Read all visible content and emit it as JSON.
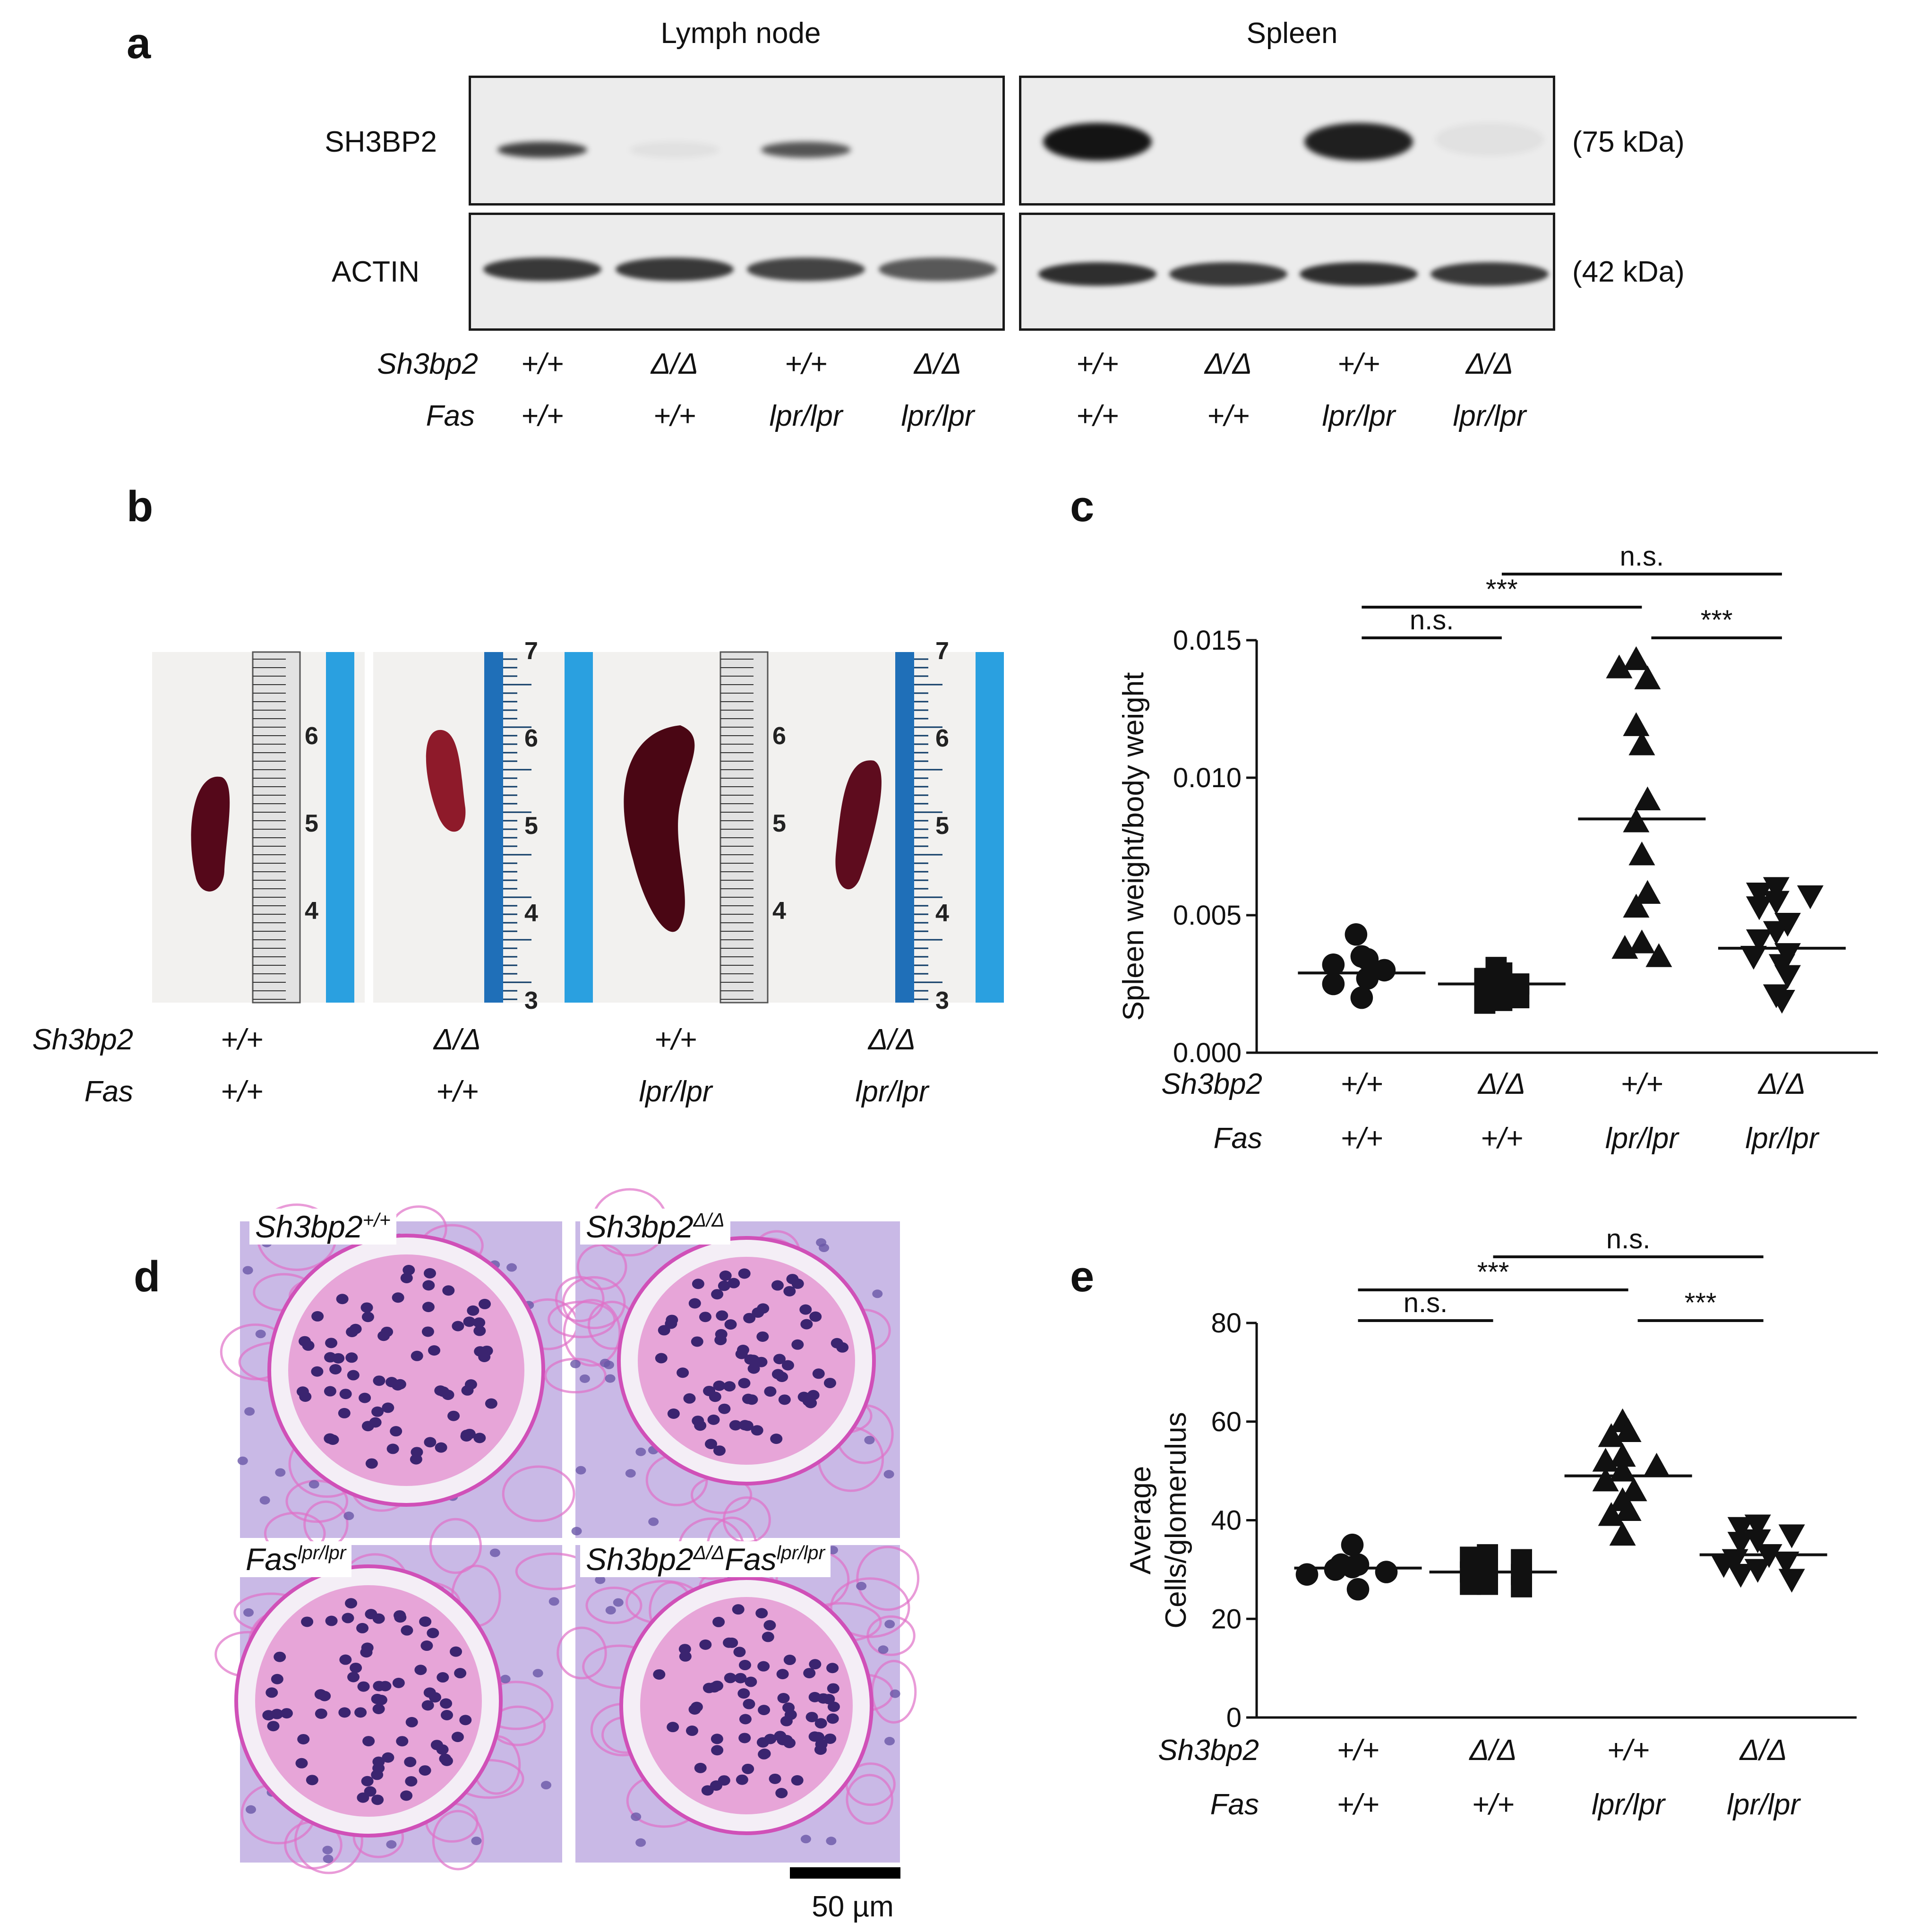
{
  "panels": {
    "a": "a",
    "b": "b",
    "c": "c",
    "d": "d",
    "e": "e"
  },
  "blot": {
    "tissue_left": "Lymph node",
    "tissue_right": "Spleen",
    "row1_label": "SH3BP2",
    "row2_label": "ACTIN",
    "row1_size": "(75 kDa)",
    "row2_size": "(42 kDa)",
    "sh3bp2_label": "Sh3bp2",
    "fas_label": "Fas",
    "sh3bp2": [
      "+/+",
      "Δ/Δ",
      "+/+",
      "Δ/Δ",
      "+/+",
      "Δ/Δ",
      "+/+",
      "Δ/Δ"
    ],
    "fas": [
      "+/+",
      "+/+",
      "lpr/lpr",
      "lpr/lpr",
      "+/+",
      "+/+",
      "lpr/lpr",
      "lpr/lpr"
    ],
    "sh3bp2_band_intensity": [
      0.8,
      0.05,
      0.7,
      0.0,
      1.0,
      0.0,
      0.95,
      0.05
    ],
    "actin_band_intensity": [
      0.85,
      0.85,
      0.8,
      0.7,
      0.9,
      0.85,
      0.9,
      0.85
    ]
  },
  "spleen_photos": {
    "ruler_marks": [
      [
        "6",
        "5",
        "4"
      ],
      [
        "7",
        "6",
        "5",
        "4",
        "3"
      ],
      [
        "6",
        "5",
        "4"
      ],
      [
        "7",
        "6",
        "5",
        "4",
        "3"
      ]
    ],
    "sh3bp2_label": "Sh3bp2",
    "fas_label": "Fas",
    "sh3bp2": [
      "+/+",
      "Δ/Δ",
      "+/+",
      "Δ/Δ"
    ],
    "fas": [
      "+/+",
      "+/+",
      "lpr/lpr",
      "lpr/lpr"
    ]
  },
  "histology": {
    "labels": [
      {
        "base": "Sh3bp2",
        "sup": "+/+"
      },
      {
        "base": "Sh3bp2",
        "sup": "Δ/Δ"
      },
      {
        "base": "Fas",
        "sup": "lpr/lpr"
      },
      {
        "base": "Sh3bp2",
        "sup": "Δ/Δ",
        "base2": "Fas",
        "sup2": "lpr/lpr"
      }
    ],
    "scale_bar": "50 µm"
  },
  "chart_data": [
    {
      "type": "scatter",
      "panel": "c",
      "ylabel": "Spleen weight/body weight",
      "ylim": [
        0,
        0.015
      ],
      "yticks": [
        "0.000",
        "0.005",
        "0.010",
        "0.015"
      ],
      "row_labels": {
        "sh3bp2": "Sh3bp2",
        "fas": "Fas"
      },
      "groups": [
        {
          "sh3bp2": "+/+",
          "fas": "+/+",
          "marker": "circle",
          "mean": 0.0029,
          "values": [
            0.0043,
            0.0035,
            0.0034,
            0.0032,
            0.003,
            0.0027,
            0.0025,
            0.002
          ]
        },
        {
          "sh3bp2": "Δ/Δ",
          "fas": "+/+",
          "marker": "square",
          "mean": 0.0025,
          "values": [
            0.0031,
            0.0029,
            0.0027,
            0.0025,
            0.0024,
            0.0022,
            0.002,
            0.0019,
            0.0018
          ]
        },
        {
          "sh3bp2": "+/+",
          "fas": "lpr/lpr",
          "marker": "triangle-up",
          "mean": 0.0085,
          "values": [
            0.0143,
            0.014,
            0.0136,
            0.0119,
            0.0112,
            0.0092,
            0.0084,
            0.0072,
            0.0058,
            0.0053,
            0.004,
            0.0038,
            0.0035
          ]
        },
        {
          "sh3bp2": "Δ/Δ",
          "fas": "lpr/lpr",
          "marker": "triangle-down",
          "mean": 0.0038,
          "values": [
            0.006,
            0.0058,
            0.0057,
            0.0055,
            0.0053,
            0.0047,
            0.0044,
            0.0041,
            0.0036,
            0.0035,
            0.0032,
            0.0028,
            0.0021,
            0.0019
          ]
        }
      ],
      "comparisons": [
        {
          "from": 0,
          "to": 1,
          "label": "n.s."
        },
        {
          "from": 0,
          "to": 2,
          "label": "***"
        },
        {
          "from": 1,
          "to": 3,
          "label": "n.s."
        },
        {
          "from": 2,
          "to": 3,
          "label": "***"
        }
      ]
    },
    {
      "type": "scatter",
      "panel": "e",
      "ylabel": [
        "Average",
        "Cells/glomerulus"
      ],
      "ylim": [
        0,
        80
      ],
      "yticks": [
        "0",
        "20",
        "40",
        "60",
        "80"
      ],
      "row_labels": {
        "sh3bp2": "Sh3bp2",
        "fas": "Fas"
      },
      "groups": [
        {
          "sh3bp2": "+/+",
          "fas": "+/+",
          "marker": "circle",
          "mean": 30.3,
          "values": [
            35,
            31,
            31,
            30.5,
            30,
            29.5,
            29,
            26
          ]
        },
        {
          "sh3bp2": "Δ/Δ",
          "fas": "+/+",
          "marker": "square",
          "mean": 29.5,
          "values": [
            33,
            32.5,
            32,
            30,
            29.5,
            29,
            27,
            27,
            26.5
          ]
        },
        {
          "sh3bp2": "+/+",
          "fas": "lpr/lpr",
          "marker": "triangle-up",
          "mean": 49,
          "values": [
            60,
            58,
            57,
            53,
            52,
            51,
            50,
            48,
            46,
            44,
            42,
            41,
            37
          ]
        },
        {
          "sh3bp2": "Δ/Δ",
          "fas": "lpr/lpr",
          "marker": "triangle-down",
          "mean": 33,
          "values": [
            39,
            38.5,
            37,
            36,
            35.5,
            33,
            32,
            31.5,
            31,
            30,
            29,
            28
          ]
        }
      ],
      "comparisons": [
        {
          "from": 0,
          "to": 1,
          "label": "n.s."
        },
        {
          "from": 0,
          "to": 2,
          "label": "***"
        },
        {
          "from": 1,
          "to": 3,
          "label": "n.s."
        },
        {
          "from": 2,
          "to": 3,
          "label": "***"
        }
      ]
    }
  ],
  "colors": {
    "ink": "#111111",
    "blot_bg": "#ececec",
    "band": "#1a1a1a",
    "ruler_blue": "#2aa0e0",
    "spleen": "#5a0a1a",
    "pas_pink": "#e7a5d8",
    "nuclei": "#3b2470"
  }
}
